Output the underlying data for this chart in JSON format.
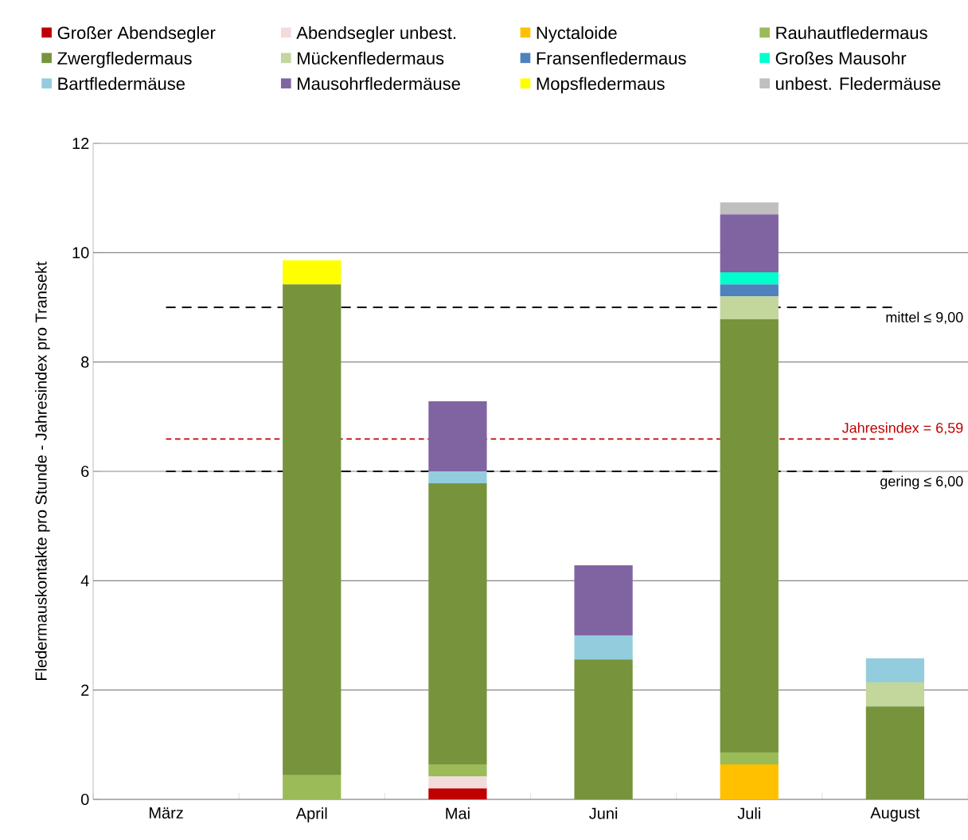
{
  "chart_data": {
    "type": "bar",
    "stacked": true,
    "ylabel": "Fledermauskontakte pro Stunde - Jahresindex pro Transekt",
    "categories": [
      "März",
      "April",
      "Mai",
      "Juni",
      "Juli",
      "August"
    ],
    "series": [
      {
        "name": "Großer Abendsegler",
        "color": "#c00000",
        "values": [
          null,
          null,
          0.2,
          null,
          null,
          null
        ]
      },
      {
        "name": "Abendsegler unbest.",
        "color": "#f2dcdb",
        "values": [
          null,
          null,
          0.22,
          null,
          null,
          null
        ]
      },
      {
        "name": "Nyctaloide",
        "color": "#ffc000",
        "values": [
          null,
          null,
          null,
          null,
          0.64,
          null
        ]
      },
      {
        "name": "Rauhautfledermaus",
        "color": "#9bbb59",
        "values": [
          null,
          0.44,
          0.22,
          null,
          0.22,
          null
        ]
      },
      {
        "name": "Zwergfledermaus",
        "color": "#77933c",
        "values": [
          null,
          8.98,
          5.14,
          2.56,
          7.92,
          1.7
        ]
      },
      {
        "name": "Mückenfledermaus",
        "color": "#c3d69b",
        "values": [
          null,
          null,
          null,
          null,
          0.42,
          0.44
        ]
      },
      {
        "name": "Fransenfledermaus",
        "color": "#4f81bd",
        "values": [
          null,
          null,
          null,
          null,
          0.22,
          null
        ]
      },
      {
        "name": "Großes Mausohr",
        "color": "#00ffcc",
        "values": [
          null,
          null,
          null,
          null,
          0.22,
          null
        ]
      },
      {
        "name": "Bartfledermäuse",
        "color": "#93cddd",
        "values": [
          null,
          null,
          0.22,
          0.44,
          null,
          0.44
        ]
      },
      {
        "name": "Mausohrfledermäuse",
        "color": "#8064a2",
        "values": [
          null,
          null,
          1.28,
          1.28,
          1.06,
          null
        ]
      },
      {
        "name": "Mopsfledermaus",
        "color": "#ffff00",
        "values": [
          null,
          0.44,
          null,
          null,
          null,
          null
        ]
      },
      {
        "name": "unbest. Fledermäuse",
        "color": "#bfbfbf",
        "values": [
          null,
          null,
          null,
          null,
          0.22,
          null
        ]
      }
    ],
    "ylim": [
      0,
      12
    ],
    "yticks": [
      0,
      2,
      4,
      6,
      8,
      10,
      12
    ],
    "grid": "y",
    "legend": "top",
    "ref_lines": [
      {
        "axis": "y",
        "value": 9,
        "label": "mittel ≤ 9,00",
        "color": "#000000",
        "line_style": "dashed"
      },
      {
        "axis": "y",
        "value": 6.59,
        "label": "Jahresindex = 6,59",
        "color": "#c00000",
        "line_style": "dashed"
      },
      {
        "axis": "y",
        "value": 6,
        "label": "gering ≤ 6,00",
        "color": "#000000",
        "line_style": "dashed"
      }
    ]
  }
}
